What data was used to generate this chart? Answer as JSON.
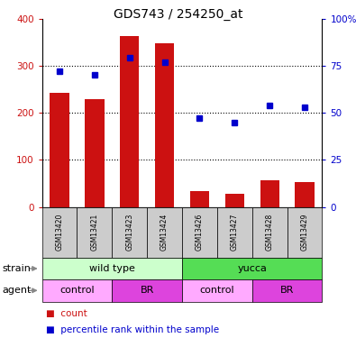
{
  "title": "GDS743 / 254250_at",
  "samples": [
    "GSM13420",
    "GSM13421",
    "GSM13423",
    "GSM13424",
    "GSM13426",
    "GSM13427",
    "GSM13428",
    "GSM13429"
  ],
  "counts": [
    242,
    228,
    363,
    348,
    33,
    28,
    57,
    52
  ],
  "percentiles": [
    72,
    70,
    79,
    77,
    47,
    45,
    54,
    53
  ],
  "ylim_left": [
    0,
    400
  ],
  "ylim_right": [
    0,
    100
  ],
  "yticks_left": [
    0,
    100,
    200,
    300,
    400
  ],
  "yticks_right": [
    0,
    25,
    50,
    75,
    100
  ],
  "ytick_right_labels": [
    "0",
    "25",
    "50",
    "75",
    "100%"
  ],
  "strain_labels": [
    "wild type",
    "yucca"
  ],
  "strain_colors": [
    "#ccffcc",
    "#55dd55"
  ],
  "agent_info": [
    {
      "label": "control",
      "color": "#ffaaff",
      "start": 0,
      "end": 2
    },
    {
      "label": "BR",
      "color": "#dd44dd",
      "start": 2,
      "end": 4
    },
    {
      "label": "control",
      "color": "#ffaaff",
      "start": 4,
      "end": 6
    },
    {
      "label": "BR",
      "color": "#dd44dd",
      "start": 6,
      "end": 8
    }
  ],
  "bar_color": "#cc1111",
  "dot_color": "#0000cc",
  "tick_color_left": "#cc1111",
  "tick_color_right": "#0000cc",
  "sample_box_color": "#cccccc",
  "arrow_color": "#888888",
  "legend_count_color": "#cc1111",
  "legend_pct_color": "#0000cc"
}
